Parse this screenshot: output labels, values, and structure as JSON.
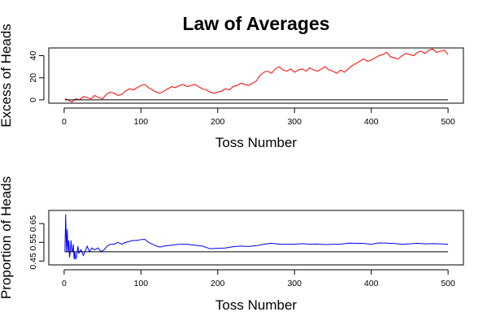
{
  "figure": {
    "title": "Law of Averages"
  },
  "chart_data": [
    {
      "type": "line",
      "title": "Law of Averages",
      "xlabel": "Toss Number",
      "ylabel": "Excess of Heads",
      "xlim": [
        0,
        500
      ],
      "ylim": [
        -3,
        47
      ],
      "xticks": [
        0,
        100,
        200,
        300,
        400,
        500
      ],
      "yticks": [
        0,
        20,
        40
      ],
      "grid": false,
      "legend": "none",
      "series": [
        {
          "color": "#ff0000",
          "x": [
            1,
            5,
            10,
            15,
            20,
            25,
            30,
            35,
            40,
            45,
            50,
            55,
            60,
            65,
            70,
            75,
            80,
            85,
            90,
            95,
            100,
            105,
            110,
            115,
            120,
            125,
            130,
            135,
            140,
            145,
            150,
            155,
            160,
            165,
            170,
            175,
            180,
            185,
            190,
            195,
            200,
            205,
            210,
            215,
            220,
            225,
            230,
            235,
            240,
            245,
            250,
            255,
            260,
            265,
            270,
            275,
            280,
            285,
            290,
            295,
            300,
            305,
            310,
            315,
            320,
            325,
            330,
            335,
            340,
            345,
            350,
            355,
            360,
            365,
            370,
            375,
            380,
            385,
            390,
            395,
            400,
            405,
            410,
            415,
            420,
            425,
            430,
            435,
            440,
            445,
            450,
            455,
            460,
            465,
            470,
            475,
            480,
            485,
            490,
            495,
            500
          ],
          "y": [
            1,
            0,
            -2,
            1,
            0,
            3,
            2,
            1,
            4,
            2,
            1,
            5,
            7,
            6,
            4,
            5,
            8,
            10,
            9,
            11,
            13,
            14,
            11,
            9,
            7,
            6,
            8,
            10,
            12,
            11,
            13,
            14,
            12,
            13,
            14,
            12,
            10,
            9,
            7,
            6,
            7,
            8,
            10,
            9,
            12,
            13,
            15,
            14,
            13,
            15,
            17,
            22,
            25,
            26,
            24,
            28,
            30,
            27,
            26,
            28,
            25,
            27,
            28,
            26,
            29,
            27,
            26,
            28,
            30,
            27,
            26,
            24,
            27,
            25,
            28,
            31,
            33,
            35,
            37,
            35,
            36,
            38,
            40,
            41,
            43,
            39,
            38,
            37,
            40,
            42,
            41,
            40,
            43,
            44,
            42,
            45,
            46,
            43,
            44,
            45,
            41
          ]
        },
        {
          "color": "#000000",
          "x": [
            1,
            500
          ],
          "y": [
            0,
            0
          ]
        }
      ]
    },
    {
      "type": "line",
      "xlabel": "Toss Number",
      "ylabel": "Proportion of Heads",
      "xlim": [
        0,
        500
      ],
      "ylim": [
        0.43,
        0.72
      ],
      "xticks": [
        0,
        100,
        200,
        300,
        400,
        500
      ],
      "yticks": [
        0.45,
        0.55,
        0.65
      ],
      "grid": false,
      "legend": "none",
      "series": [
        {
          "color": "#0000ff",
          "x": [
            1,
            2,
            3,
            4,
            5,
            6,
            7,
            8,
            9,
            10,
            11,
            12,
            13,
            14,
            15,
            16,
            17,
            18,
            19,
            20,
            22,
            25,
            28,
            30,
            33,
            36,
            40,
            44,
            48,
            52,
            56,
            60,
            65,
            70,
            75,
            80,
            85,
            90,
            95,
            100,
            105,
            110,
            115,
            120,
            125,
            130,
            140,
            150,
            160,
            170,
            180,
            190,
            200,
            210,
            220,
            230,
            240,
            250,
            260,
            270,
            280,
            290,
            300,
            310,
            320,
            330,
            340,
            350,
            360,
            370,
            380,
            390,
            400,
            410,
            420,
            430,
            440,
            450,
            460,
            470,
            480,
            490,
            500
          ],
          "y": [
            0.5,
            0.7,
            0.5,
            0.62,
            0.5,
            0.56,
            0.47,
            0.5,
            0.56,
            0.5,
            0.5,
            0.54,
            0.46,
            0.5,
            0.46,
            0.47,
            0.5,
            0.53,
            0.49,
            0.5,
            0.51,
            0.48,
            0.51,
            0.53,
            0.5,
            0.52,
            0.51,
            0.52,
            0.5,
            0.51,
            0.53,
            0.54,
            0.54,
            0.55,
            0.54,
            0.55,
            0.555,
            0.56,
            0.56,
            0.565,
            0.566,
            0.55,
            0.54,
            0.53,
            0.525,
            0.53,
            0.535,
            0.54,
            0.54,
            0.535,
            0.53,
            0.516,
            0.518,
            0.52,
            0.527,
            0.53,
            0.528,
            0.532,
            0.54,
            0.545,
            0.54,
            0.54,
            0.54,
            0.543,
            0.54,
            0.541,
            0.538,
            0.54,
            0.54,
            0.546,
            0.545,
            0.544,
            0.54,
            0.547,
            0.546,
            0.544,
            0.54,
            0.542,
            0.545,
            0.542,
            0.543,
            0.542,
            0.54
          ]
        },
        {
          "color": "#000000",
          "x": [
            1,
            500
          ],
          "y": [
            0.5,
            0.5
          ]
        }
      ]
    }
  ]
}
